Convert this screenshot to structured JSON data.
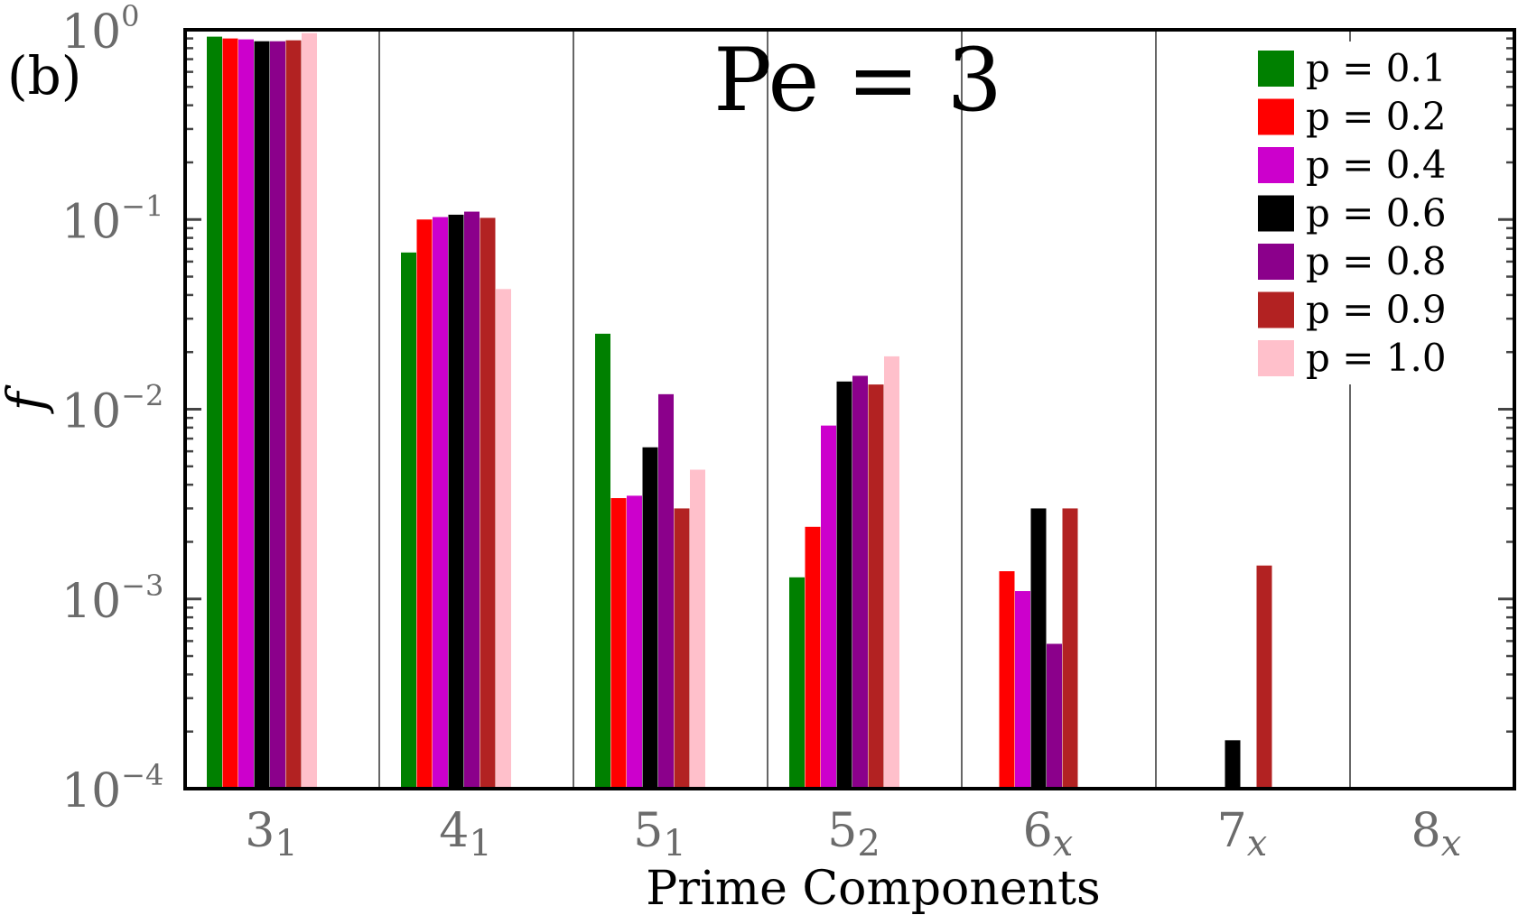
{
  "panel_label": "(b)",
  "chart_data": {
    "type": "bar",
    "title": "Pe = 3",
    "xlabel": "Prime Components",
    "ylabel": "f",
    "yscale": "log",
    "ylim": [
      0.0001,
      1
    ],
    "yticks": [
      {
        "value": 1,
        "base": "10",
        "exp": "0"
      },
      {
        "value": 0.1,
        "base": "10",
        "exp": "−1"
      },
      {
        "value": 0.01,
        "base": "10",
        "exp": "−2"
      },
      {
        "value": 0.001,
        "base": "10",
        "exp": "−3"
      },
      {
        "value": 0.0001,
        "base": "10",
        "exp": "−4"
      }
    ],
    "categories": [
      {
        "main": "3",
        "sub": "1"
      },
      {
        "main": "4",
        "sub": "1"
      },
      {
        "main": "5",
        "sub": "1"
      },
      {
        "main": "5",
        "sub": "2"
      },
      {
        "main": "6",
        "sub": "x"
      },
      {
        "main": "7",
        "sub": "x"
      },
      {
        "main": "8",
        "sub": "x"
      }
    ],
    "legend_position": "top-right",
    "grid": "vertical category separators",
    "series": [
      {
        "name": "p = 0.1",
        "color": "#008000",
        "values": [
          0.92,
          0.067,
          0.025,
          0.0013,
          null,
          null,
          null
        ]
      },
      {
        "name": "p = 0.2",
        "color": "#ff0000",
        "values": [
          0.9,
          0.1,
          0.0034,
          0.0024,
          0.0014,
          null,
          null
        ]
      },
      {
        "name": "p = 0.4",
        "color": "#cc00cc",
        "values": [
          0.89,
          0.103,
          0.0035,
          0.0082,
          0.0011,
          null,
          null
        ]
      },
      {
        "name": "p = 0.6",
        "color": "#000000",
        "values": [
          0.87,
          0.106,
          0.0063,
          0.014,
          0.003,
          0.00018,
          null
        ]
      },
      {
        "name": "p = 0.8",
        "color": "#8b008b",
        "values": [
          0.87,
          0.11,
          0.012,
          0.015,
          0.00058,
          null,
          null
        ]
      },
      {
        "name": "p = 0.9",
        "color": "#b22222",
        "values": [
          0.88,
          0.102,
          0.003,
          0.0135,
          0.003,
          0.0015,
          null
        ]
      },
      {
        "name": "p = 1.0",
        "color": "#ffc0cb",
        "values": [
          0.96,
          0.043,
          0.0048,
          0.019,
          null,
          null,
          null
        ]
      }
    ]
  }
}
